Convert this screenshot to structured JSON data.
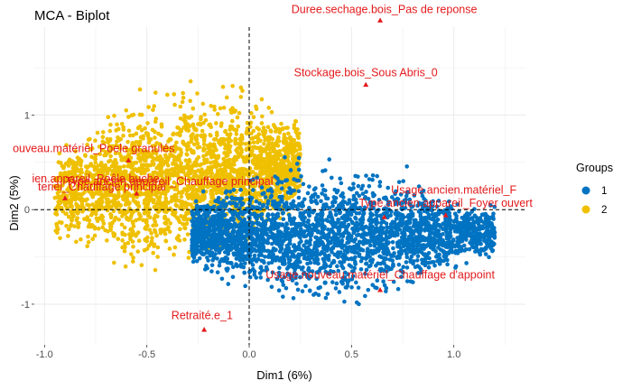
{
  "chart_data": {
    "type": "scatter",
    "title": "MCA - Biplot",
    "xlabel": "Dim1 (6%)",
    "ylabel": "Dim2 (5%)",
    "xlim": [
      -1.05,
      1.35
    ],
    "ylim": [
      -1.43,
      1.93
    ],
    "x_ticks": [
      -1.0,
      -0.5,
      0.0,
      0.5,
      1.0
    ],
    "x_tick_labels": [
      "-1.0",
      "-0.5",
      "0.0",
      "0.5",
      "1.0"
    ],
    "y_ticks": [
      -1,
      0,
      1
    ],
    "y_tick_labels": [
      "-1",
      "0",
      "1"
    ],
    "grid": true,
    "reference_lines": {
      "x": 0,
      "y": 0,
      "style": "dashed"
    },
    "legend": {
      "title": "Groups",
      "position": "right"
    },
    "series": [
      {
        "name": "1",
        "color": "#0073C2",
        "cloud": {
          "x_range": [
            -0.28,
            1.2
          ],
          "y_center": -0.2,
          "y_spread": 0.55
        }
      },
      {
        "name": "2",
        "color": "#EFC000",
        "cloud": {
          "x_range": [
            -0.95,
            0.25
          ],
          "y_center": 0.15,
          "y_spread": 0.6
        }
      }
    ],
    "variable_points": [
      {
        "label": "Duree.sechage.bois_Pas de reponse",
        "x": 0.64,
        "y": 2.0
      },
      {
        "label": "Stockage.bois_Sous Abris_0",
        "x": 0.57,
        "y": 1.32
      },
      {
        "label": "Usage.nouveau.matériel_Poele granulés",
        "x": -0.59,
        "y": 0.52
      },
      {
        "label": "Type.ancien.appareil_Poêle buche",
        "x": -0.55,
        "y": 0.17
      },
      {
        "label": "Usage.nouveau.matériel_Chauffage principal",
        "x": -0.9,
        "y": 0.12
      },
      {
        "label": "Usage.ancien.matériel_Foyer ouvert",
        "x": 0.96,
        "y": -0.06
      },
      {
        "label": "Type.ancien.appareil_Foyer ouvert",
        "x": 0.66,
        "y": -0.08
      },
      {
        "label": "Usage.nouveau.matériel_Chauffage d'appoint",
        "x": 0.64,
        "y": -0.85
      },
      {
        "label": "Retraité.e_1",
        "x": -0.22,
        "y": -1.27
      }
    ],
    "variable_point_color": "#e31a1c",
    "annotation_texts": [
      {
        "text": "Duree.sechage.bois_Pas de reponse",
        "x": 0.66,
        "y": 2.08
      },
      {
        "text": "Stockage.bois_Sous Abris_0",
        "x": 0.57,
        "y": 1.41
      },
      {
        "text": "ouveau.matériel_Poele granulés",
        "x": -0.76,
        "y": 0.61
      },
      {
        "text": "ien.appareil_Poêle buche",
        "x": -0.75,
        "y": 0.29
      },
      {
        "text": "Type.ancien.appareil_Chauffage principal",
        "x": -0.39,
        "y": 0.26
      },
      {
        "text": "teriel_Chauffage principal",
        "x": -0.72,
        "y": 0.2
      },
      {
        "text": "Usage.ancien.matériel_F",
        "x": 1.0,
        "y": 0.17
      },
      {
        "text": "Type.ancien.appareil_Foyer ouvert",
        "x": 0.96,
        "y": 0.03
      },
      {
        "text": "Usage.nouveau.matériel_Chauffage d'appoint",
        "x": 0.64,
        "y": -0.73
      },
      {
        "text": "Retraité.e_1",
        "x": -0.23,
        "y": -1.16
      }
    ]
  }
}
